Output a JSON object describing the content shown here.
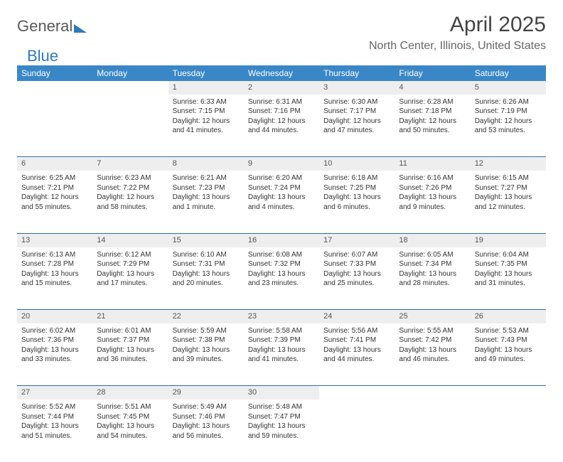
{
  "brand": {
    "part1": "General",
    "part2": "Blue"
  },
  "title": "April 2025",
  "location": "North Center, Illinois, United States",
  "colors": {
    "header_bg": "#3a87c7",
    "header_text": "#ffffff",
    "daynum_bg": "#eeeeee",
    "row_border": "#2f6fa3",
    "text": "#333333",
    "title_text": "#444444",
    "location_text": "#666666"
  },
  "day_headers": [
    "Sunday",
    "Monday",
    "Tuesday",
    "Wednesday",
    "Thursday",
    "Friday",
    "Saturday"
  ],
  "weeks": [
    {
      "nums": [
        "",
        "",
        "1",
        "2",
        "3",
        "4",
        "5"
      ],
      "cells": [
        {
          "empty": true
        },
        {
          "empty": true
        },
        {
          "sunrise": "6:33 AM",
          "sunset": "7:15 PM",
          "daylight": "12 hours and 41 minutes."
        },
        {
          "sunrise": "6:31 AM",
          "sunset": "7:16 PM",
          "daylight": "12 hours and 44 minutes."
        },
        {
          "sunrise": "6:30 AM",
          "sunset": "7:17 PM",
          "daylight": "12 hours and 47 minutes."
        },
        {
          "sunrise": "6:28 AM",
          "sunset": "7:18 PM",
          "daylight": "12 hours and 50 minutes."
        },
        {
          "sunrise": "6:26 AM",
          "sunset": "7:19 PM",
          "daylight": "12 hours and 53 minutes."
        }
      ]
    },
    {
      "nums": [
        "6",
        "7",
        "8",
        "9",
        "10",
        "11",
        "12"
      ],
      "cells": [
        {
          "sunrise": "6:25 AM",
          "sunset": "7:21 PM",
          "daylight": "12 hours and 55 minutes."
        },
        {
          "sunrise": "6:23 AM",
          "sunset": "7:22 PM",
          "daylight": "12 hours and 58 minutes."
        },
        {
          "sunrise": "6:21 AM",
          "sunset": "7:23 PM",
          "daylight": "13 hours and 1 minute."
        },
        {
          "sunrise": "6:20 AM",
          "sunset": "7:24 PM",
          "daylight": "13 hours and 4 minutes."
        },
        {
          "sunrise": "6:18 AM",
          "sunset": "7:25 PM",
          "daylight": "13 hours and 6 minutes."
        },
        {
          "sunrise": "6:16 AM",
          "sunset": "7:26 PM",
          "daylight": "13 hours and 9 minutes."
        },
        {
          "sunrise": "6:15 AM",
          "sunset": "7:27 PM",
          "daylight": "13 hours and 12 minutes."
        }
      ]
    },
    {
      "nums": [
        "13",
        "14",
        "15",
        "16",
        "17",
        "18",
        "19"
      ],
      "cells": [
        {
          "sunrise": "6:13 AM",
          "sunset": "7:28 PM",
          "daylight": "13 hours and 15 minutes."
        },
        {
          "sunrise": "6:12 AM",
          "sunset": "7:29 PM",
          "daylight": "13 hours and 17 minutes."
        },
        {
          "sunrise": "6:10 AM",
          "sunset": "7:31 PM",
          "daylight": "13 hours and 20 minutes."
        },
        {
          "sunrise": "6:08 AM",
          "sunset": "7:32 PM",
          "daylight": "13 hours and 23 minutes."
        },
        {
          "sunrise": "6:07 AM",
          "sunset": "7:33 PM",
          "daylight": "13 hours and 25 minutes."
        },
        {
          "sunrise": "6:05 AM",
          "sunset": "7:34 PM",
          "daylight": "13 hours and 28 minutes."
        },
        {
          "sunrise": "6:04 AM",
          "sunset": "7:35 PM",
          "daylight": "13 hours and 31 minutes."
        }
      ]
    },
    {
      "nums": [
        "20",
        "21",
        "22",
        "23",
        "24",
        "25",
        "26"
      ],
      "cells": [
        {
          "sunrise": "6:02 AM",
          "sunset": "7:36 PM",
          "daylight": "13 hours and 33 minutes."
        },
        {
          "sunrise": "6:01 AM",
          "sunset": "7:37 PM",
          "daylight": "13 hours and 36 minutes."
        },
        {
          "sunrise": "5:59 AM",
          "sunset": "7:38 PM",
          "daylight": "13 hours and 39 minutes."
        },
        {
          "sunrise": "5:58 AM",
          "sunset": "7:39 PM",
          "daylight": "13 hours and 41 minutes."
        },
        {
          "sunrise": "5:56 AM",
          "sunset": "7:41 PM",
          "daylight": "13 hours and 44 minutes."
        },
        {
          "sunrise": "5:55 AM",
          "sunset": "7:42 PM",
          "daylight": "13 hours and 46 minutes."
        },
        {
          "sunrise": "5:53 AM",
          "sunset": "7:43 PM",
          "daylight": "13 hours and 49 minutes."
        }
      ]
    },
    {
      "nums": [
        "27",
        "28",
        "29",
        "30",
        "",
        "",
        ""
      ],
      "last": true,
      "cells": [
        {
          "sunrise": "5:52 AM",
          "sunset": "7:44 PM",
          "daylight": "13 hours and 51 minutes."
        },
        {
          "sunrise": "5:51 AM",
          "sunset": "7:45 PM",
          "daylight": "13 hours and 54 minutes."
        },
        {
          "sunrise": "5:49 AM",
          "sunset": "7:46 PM",
          "daylight": "13 hours and 56 minutes."
        },
        {
          "sunrise": "5:48 AM",
          "sunset": "7:47 PM",
          "daylight": "13 hours and 59 minutes."
        },
        {
          "empty": true
        },
        {
          "empty": true
        },
        {
          "empty": true
        }
      ]
    }
  ],
  "labels": {
    "sunrise": "Sunrise: ",
    "sunset": "Sunset: ",
    "daylight": "Daylight: "
  }
}
